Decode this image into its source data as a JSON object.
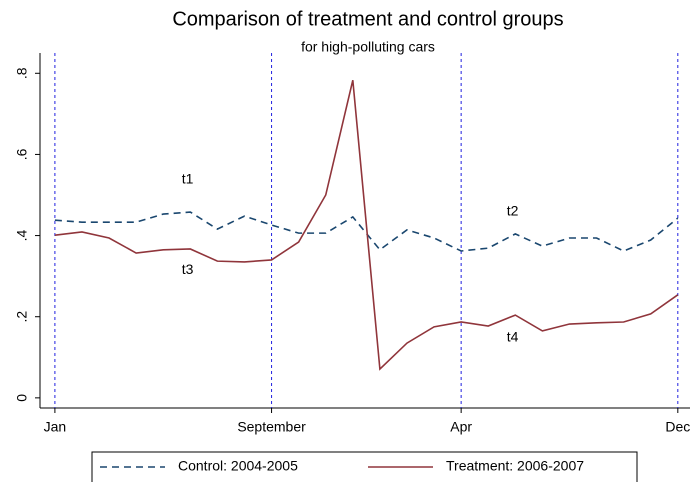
{
  "chart_data": {
    "type": "line",
    "title": "Comparison of treatment and control groups",
    "subtitle": "for high-polluting cars",
    "x": [
      0,
      1,
      2,
      3,
      4,
      5,
      6,
      7,
      8,
      9,
      10,
      11,
      12,
      13,
      14,
      15,
      16,
      17,
      18,
      19,
      20,
      21,
      22,
      23
    ],
    "series": [
      {
        "name": "Control: 2004-2005",
        "color": "#1a476f",
        "dash": true,
        "values": [
          0.438,
          0.433,
          0.433,
          0.433,
          0.453,
          0.458,
          0.416,
          0.448,
          0.426,
          0.406,
          0.406,
          0.446,
          0.365,
          0.414,
          0.394,
          0.362,
          0.369,
          0.404,
          0.374,
          0.394,
          0.394,
          0.362,
          0.389,
          0.443
        ]
      },
      {
        "name": "Treatment: 2006-2007",
        "color": "#90353b",
        "dash": false,
        "values": [
          0.401,
          0.409,
          0.394,
          0.357,
          0.365,
          0.367,
          0.337,
          0.335,
          0.34,
          0.384,
          0.5,
          0.783,
          0.071,
          0.135,
          0.175,
          0.187,
          0.177,
          0.204,
          0.165,
          0.182,
          0.185,
          0.187,
          0.207,
          0.254
        ]
      }
    ],
    "annotations": [
      "t1",
      "t2",
      "t3",
      "t4"
    ],
    "xlim": [
      -0.55,
      23.45
    ],
    "xticks": [
      {
        "value": 0,
        "label": "Jan"
      },
      {
        "value": 8,
        "label": "September"
      },
      {
        "value": 15,
        "label": "Apr"
      },
      {
        "value": 23,
        "label": "Dec"
      }
    ],
    "ylim": [
      -0.025,
      0.85
    ],
    "yticks": [
      0,
      {
        "value": 0.2,
        "label": ".2"
      },
      {
        "value": 0.4,
        "label": ".4"
      },
      {
        "value": 0.6,
        "label": ".6"
      },
      {
        "value": 0.8,
        "label": ".8"
      }
    ],
    "xline_color": "#2020e0",
    "legend": "bottom"
  }
}
